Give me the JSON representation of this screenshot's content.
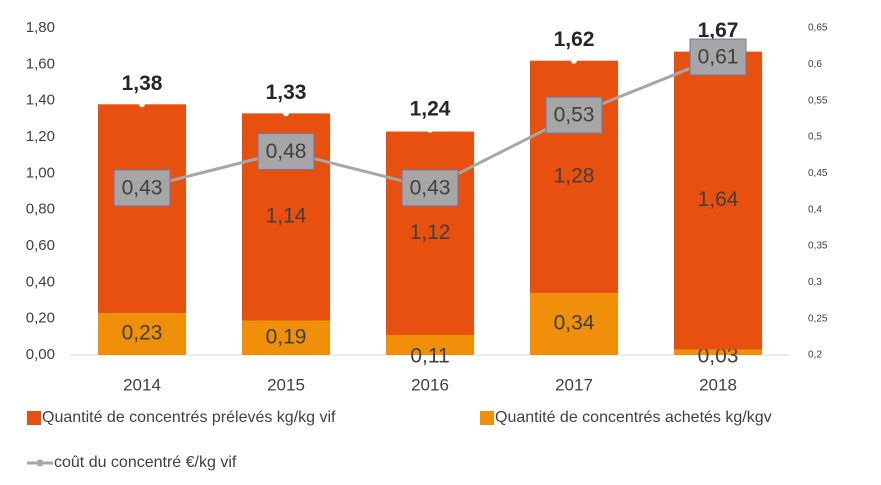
{
  "chart_data": {
    "type": "bar",
    "categories": [
      "2014",
      "2015",
      "2016",
      "2017",
      "2018"
    ],
    "series": [
      {
        "name": "Quantité de concentrés achetés kg/kgv",
        "color": "#f0900a",
        "values": [
          0.23,
          0.19,
          0.11,
          0.34,
          0.03
        ],
        "value_labels": [
          "0,23",
          "0,19",
          "0,11",
          "0,34",
          "0,03"
        ]
      },
      {
        "name": "Quantité de concentrés prélevés kg/kg vif",
        "color": "#e8500f",
        "values": [
          1.15,
          1.14,
          1.12,
          1.28,
          1.64
        ],
        "value_labels": [
          null,
          "1,14",
          "1,12",
          "1,28",
          "1,64"
        ]
      },
      {
        "name": "coût du concentré €/kg vif",
        "color": "#a6a6a6",
        "axis": "y2",
        "values": [
          0.43,
          0.48,
          0.43,
          0.53,
          0.61
        ],
        "value_labels": [
          "0,43",
          "0,48",
          "0,43",
          "0,53",
          "0,61"
        ]
      }
    ],
    "totals": [
      1.38,
      1.33,
      1.24,
      1.62,
      1.67
    ],
    "total_labels": [
      "1,38",
      "1,33",
      "1,24",
      "1,62",
      "1,67"
    ],
    "ylim": [
      0,
      1.8
    ],
    "yticks": [
      {
        "value": 0,
        "label": "0,00"
      },
      {
        "value": 0.2,
        "label": "0,20"
      },
      {
        "value": 0.4,
        "label": "0,40"
      },
      {
        "value": 0.6,
        "label": "0,60"
      },
      {
        "value": 0.8,
        "label": "0,80"
      },
      {
        "value": 1.0,
        "label": "1,00"
      },
      {
        "value": 1.2,
        "label": "1,20"
      },
      {
        "value": 1.4,
        "label": "1,40"
      },
      {
        "value": 1.6,
        "label": "1,60"
      },
      {
        "value": 1.8,
        "label": "1,80"
      }
    ],
    "y2lim": [
      0.2,
      0.65
    ],
    "y2ticks": [
      {
        "value": 0.2,
        "label": "0,2"
      },
      {
        "value": 0.25,
        "label": "0,25"
      },
      {
        "value": 0.3,
        "label": "0,3"
      },
      {
        "value": 0.35,
        "label": "0,35"
      },
      {
        "value": 0.4,
        "label": "0,4"
      },
      {
        "value": 0.45,
        "label": "0,45"
      },
      {
        "value": 0.5,
        "label": "0,5"
      },
      {
        "value": 0.55,
        "label": "0,55"
      },
      {
        "value": 0.6,
        "label": "0,6"
      },
      {
        "value": 0.65,
        "label": "0,65"
      }
    ]
  }
}
